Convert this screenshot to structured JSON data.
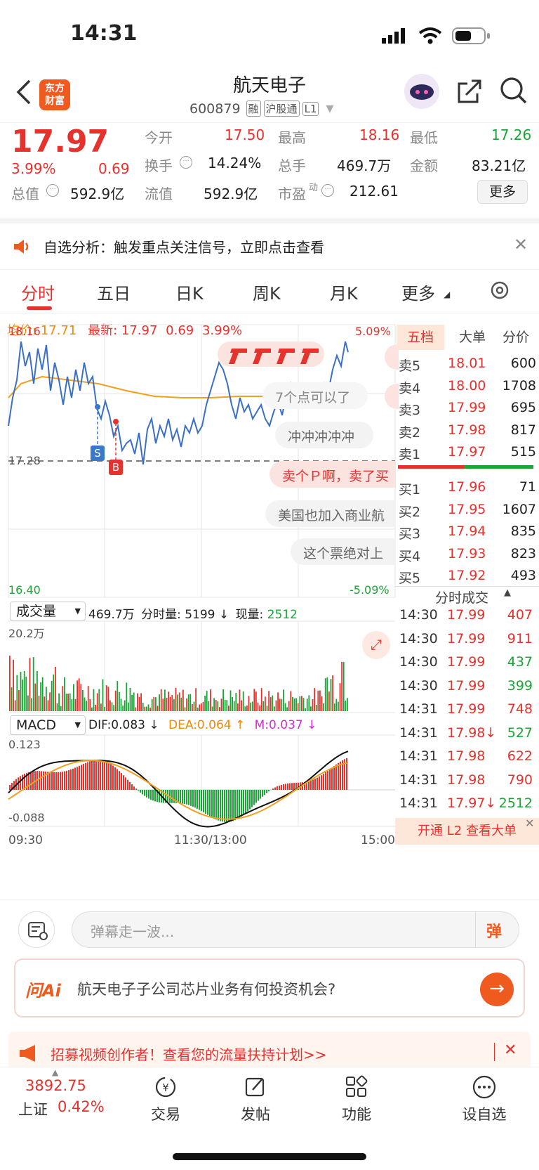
{
  "status": {
    "time": "14:31"
  },
  "header": {
    "title": "航天电子",
    "code": "600879",
    "tags": [
      "融",
      "沪股通",
      "L1"
    ],
    "logo_text": "东方\n财富"
  },
  "quote": {
    "price": "17.97",
    "pct": "3.99%",
    "chg": "0.69",
    "open_label": "今开",
    "open": "17.50",
    "high_label": "最高",
    "high": "18.16",
    "low_label": "最低",
    "low": "17.26",
    "turnover_label": "换手",
    "turnover": "14.24%",
    "volume_label": "总手",
    "volume": "469.7万",
    "amount_label": "金额",
    "amount": "83.21亿",
    "mcap_label": "总值",
    "mcap": "592.9亿",
    "float_label": "流值",
    "float": "592.9亿",
    "pe_label": "市盈",
    "pe_sup": "动",
    "pe": "212.61",
    "more": "更多"
  },
  "notice": {
    "text": "自选分析：触发重点关注信号，立即点击查看"
  },
  "tabs": [
    "分时",
    "五日",
    "日K",
    "周K",
    "月K",
    "更多"
  ],
  "chart_info": {
    "avg_label": "均价:",
    "avg": "17.71",
    "last_label": "最新:",
    "last": "17.97",
    "chg": "0.69",
    "pct": "3.99%"
  },
  "axes": {
    "top": "18.16",
    "top_pct": "5.09%",
    "mid": "17.28",
    "bottom": "16.40",
    "bottom_pct": "-5.09%",
    "vol_max": "20.2万",
    "macd_max": "0.123",
    "macd_min": "-0.088",
    "t_start": "09:30",
    "t_mid": "11:30/13:00",
    "t_end": "15:00"
  },
  "volume_bar": {
    "selector": "成交量",
    "total": "469.7万",
    "min_label": "分时量:",
    "min_val": "5199 ↓",
    "now_label": "现量:",
    "now_val": "2512"
  },
  "macd_bar": {
    "selector": "MACD",
    "dif": "DIF:0.083 ↓",
    "dea": "DEA:0.064 ↑",
    "m": "M:0.037 ↓"
  },
  "markers": {
    "sell": "S",
    "buy": "B"
  },
  "danmaku": [
    "7个点可以了",
    "冲冲冲冲冲",
    "卖个Ｐ啊，卖了买",
    "美国也加入商业航",
    "这个票绝对上"
  ],
  "orderbook": {
    "tabs": [
      "五档",
      "大单",
      "分价"
    ],
    "asks": [
      {
        "label": "卖5",
        "price": "18.01",
        "vol": "600"
      },
      {
        "label": "卖4",
        "price": "18.00",
        "vol": "1708"
      },
      {
        "label": "卖3",
        "price": "17.99",
        "vol": "695"
      },
      {
        "label": "卖2",
        "price": "17.98",
        "vol": "817"
      },
      {
        "label": "卖1",
        "price": "17.97",
        "vol": "515"
      }
    ],
    "bids": [
      {
        "label": "买1",
        "price": "17.96",
        "vol": "71"
      },
      {
        "label": "买2",
        "price": "17.95",
        "vol": "1607"
      },
      {
        "label": "买3",
        "price": "17.94",
        "vol": "835"
      },
      {
        "label": "买4",
        "price": "17.93",
        "vol": "823"
      },
      {
        "label": "买5",
        "price": "17.92",
        "vol": "493"
      }
    ],
    "trades_title": "分时成交",
    "trades": [
      {
        "t": "14:30",
        "p": "17.99",
        "v": "407",
        "vc": "red",
        "pc": "red"
      },
      {
        "t": "14:30",
        "p": "17.99",
        "v": "911",
        "vc": "red",
        "pc": "red"
      },
      {
        "t": "14:30",
        "p": "17.99",
        "v": "437",
        "vc": "green",
        "pc": "red"
      },
      {
        "t": "14:30",
        "p": "17.99",
        "v": "399",
        "vc": "green",
        "pc": "red"
      },
      {
        "t": "14:31",
        "p": "17.99",
        "v": "748",
        "vc": "red",
        "pc": "red"
      },
      {
        "t": "14:31",
        "p": "17.98↓",
        "v": "527",
        "vc": "green",
        "pc": "red"
      },
      {
        "t": "14:31",
        "p": "17.98",
        "v": "622",
        "vc": "red",
        "pc": "red"
      },
      {
        "t": "14:31",
        "p": "17.98",
        "v": "790",
        "vc": "red",
        "pc": "red"
      },
      {
        "t": "14:31",
        "p": "17.97↓",
        "v": "2512",
        "vc": "green",
        "pc": "red"
      }
    ],
    "l2": "开通 L2 查看大单"
  },
  "comment": {
    "placeholder": "弹幕走一波...",
    "danmaku_btn": "弹"
  },
  "ai": {
    "logo": "问Ai",
    "question": "航天电子子公司芯片业务有何投资机会?"
  },
  "promo": {
    "text": "招募视频创作者！查看您的流量扶持计划>>"
  },
  "bottom_nav": {
    "index_value": "3892.75",
    "index_name": "上证",
    "index_pct": "0.42%",
    "items": [
      "交易",
      "发帖",
      "功能",
      "设自选"
    ]
  },
  "colors": {
    "up": "#e5322d",
    "down": "#1ba536",
    "accent": "#f08a00",
    "avg_line": "#f0a020",
    "price_line": "#3a6fc4"
  }
}
